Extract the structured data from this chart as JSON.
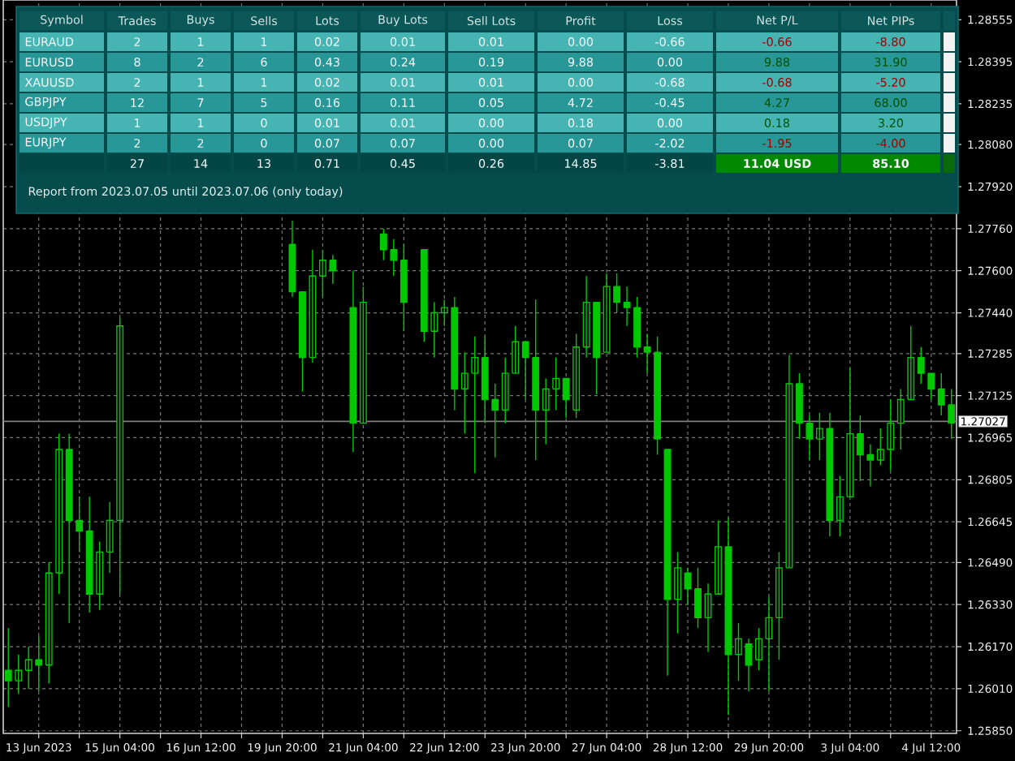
{
  "chart_data": [
    {
      "type": "candlestick",
      "color": "#00c800",
      "grid": true,
      "categories": [
        null,
        null,
        null,
        "13 Jun 2023",
        null,
        null,
        null,
        null,
        null,
        null,
        null,
        "15 Jun 04:00",
        null,
        null,
        null,
        null,
        null,
        null,
        null,
        "16 Jun 12:00",
        null,
        null,
        null,
        null,
        null,
        null,
        null,
        "19 Jun 20:00",
        null,
        null,
        null,
        null,
        null,
        null,
        null,
        "21 Jun 04:00",
        null,
        null,
        null,
        null,
        null,
        null,
        null,
        "22 Jun 12:00",
        null,
        null,
        null,
        null,
        null,
        null,
        null,
        "23 Jun 20:00",
        null,
        null,
        null,
        null,
        null,
        null,
        null,
        "27 Jun 04:00",
        null,
        null,
        null,
        null,
        null,
        null,
        null,
        "28 Jun 12:00",
        null,
        null,
        null,
        null,
        null,
        null,
        null,
        "29 Jun 20:00",
        null,
        null,
        null,
        null,
        null,
        null,
        null,
        "3 Jul 04:00",
        null,
        null,
        null,
        null,
        null,
        null,
        null,
        "4 Jul 12:00",
        null,
        null
      ],
      "ohlc": [
        [
          1.2608,
          1.2624,
          1.2594,
          1.2604
        ],
        [
          1.2604,
          1.2614,
          1.2599,
          1.2608
        ],
        [
          1.2608,
          1.2617,
          1.2601,
          1.2612
        ],
        [
          1.2612,
          1.2621,
          1.26,
          1.261
        ],
        [
          1.261,
          1.2649,
          1.2603,
          1.2645
        ],
        [
          1.2645,
          1.2698,
          1.2637,
          1.2692
        ],
        [
          1.2692,
          1.2698,
          1.2626,
          1.2665
        ],
        [
          1.2665,
          1.2674,
          1.2653,
          1.2661
        ],
        [
          1.2661,
          1.2674,
          1.263,
          1.2637
        ],
        [
          1.2637,
          1.2657,
          1.2631,
          1.2653
        ],
        [
          1.2653,
          1.2672,
          1.2645,
          1.2665
        ],
        [
          1.2665,
          1.2742,
          1.2637,
          1.2739
        ],
        null,
        null,
        null,
        null,
        null,
        null,
        null,
        null,
        null,
        null,
        null,
        null,
        null,
        null,
        null,
        null,
        [
          1.277,
          1.2779,
          1.275,
          1.2752
        ],
        [
          1.2752,
          1.2752,
          1.2714,
          1.2727
        ],
        [
          1.2727,
          1.2768,
          1.2725,
          1.2758
        ],
        [
          1.2758,
          1.2768,
          1.275,
          1.2764
        ],
        [
          1.2764,
          1.2766,
          1.2755,
          1.276
        ],
        null,
        [
          1.2746,
          1.276,
          1.2691,
          1.2702
        ],
        [
          1.2702,
          1.2754,
          1.2702,
          1.2748
        ],
        null,
        [
          1.2774,
          1.2776,
          1.2764,
          1.2768
        ],
        [
          1.2768,
          1.2772,
          1.2758,
          1.2764
        ],
        [
          1.2764,
          1.277,
          1.2737,
          1.2748
        ],
        null,
        [
          1.2768,
          1.2768,
          1.2733,
          1.2737
        ],
        [
          1.2737,
          1.2748,
          1.2727,
          1.2744
        ],
        [
          1.2744,
          1.2749,
          1.2739,
          1.2746
        ],
        [
          1.2746,
          1.275,
          1.2707,
          1.2715
        ],
        [
          1.2715,
          1.2729,
          1.2698,
          1.2721
        ],
        [
          1.2721,
          1.2735,
          1.2683,
          1.2727
        ],
        [
          1.2727,
          1.2735,
          1.2702,
          1.2711
        ],
        [
          1.2711,
          1.2717,
          1.2689,
          1.2707
        ],
        [
          1.2707,
          1.2727,
          1.2702,
          1.2721
        ],
        [
          1.2721,
          1.2739,
          1.2721,
          1.2733
        ],
        [
          1.2733,
          1.2733,
          1.2711,
          1.2727
        ],
        [
          1.2727,
          1.2749,
          1.2688,
          1.2707
        ],
        [
          1.2707,
          1.2719,
          1.2694,
          1.2715
        ],
        [
          1.2715,
          1.2727,
          1.2707,
          1.2719
        ],
        [
          1.2719,
          1.2719,
          1.2704,
          1.2711
        ],
        [
          1.2707,
          1.2736,
          1.2704,
          1.2731
        ],
        [
          1.2731,
          1.2758,
          1.2727,
          1.2748
        ],
        [
          1.2748,
          1.2748,
          1.2713,
          1.2727
        ],
        [
          1.2729,
          1.2759,
          1.2729,
          1.2754
        ],
        [
          1.2754,
          1.2759,
          1.2744,
          1.2748
        ],
        [
          1.2748,
          1.2754,
          1.2739,
          1.2746
        ],
        [
          1.2746,
          1.275,
          1.2727,
          1.2731
        ],
        [
          1.2731,
          1.2736,
          1.2721,
          1.2729
        ],
        [
          1.2729,
          1.2735,
          1.269,
          1.2696
        ],
        [
          1.2692,
          1.2692,
          1.2606,
          1.2635
        ],
        [
          1.2635,
          1.2653,
          1.2622,
          1.2647
        ],
        [
          1.2645,
          1.2647,
          1.2633,
          1.2639
        ],
        [
          1.2639,
          1.2647,
          1.2624,
          1.2628
        ],
        [
          1.2628,
          1.2641,
          1.2615,
          1.2637
        ],
        [
          1.2637,
          1.2665,
          1.2637,
          1.2655
        ],
        [
          1.2655,
          1.2666,
          1.2591,
          1.2614
        ],
        [
          1.2614,
          1.2626,
          1.2604,
          1.262
        ],
        [
          1.2618,
          1.262,
          1.26,
          1.261
        ],
        [
          1.2612,
          1.2624,
          1.2608,
          1.262
        ],
        [
          1.262,
          1.2636,
          1.26,
          1.2628
        ],
        [
          1.2628,
          1.2653,
          1.2612,
          1.2647
        ],
        [
          1.2647,
          1.2728,
          1.2647,
          1.2717
        ],
        [
          1.2717,
          1.2721,
          1.2696,
          1.2702
        ],
        [
          1.2702,
          1.2705,
          1.2688,
          1.2696
        ],
        [
          1.2696,
          1.2706,
          1.2688,
          1.27
        ],
        [
          1.27,
          1.2706,
          1.2659,
          1.2665
        ],
        [
          1.2665,
          1.2682,
          1.2659,
          1.2674
        ],
        [
          1.2674,
          1.2723,
          1.2674,
          1.2698
        ],
        [
          1.2698,
          1.2705,
          1.268,
          1.269
        ],
        [
          1.269,
          1.2694,
          1.2678,
          1.2688
        ],
        [
          1.2688,
          1.27,
          1.2686,
          1.2692
        ],
        [
          1.2692,
          1.2711,
          1.2684,
          1.2702
        ],
        [
          1.2702,
          1.2715,
          1.2692,
          1.2711
        ],
        [
          1.2711,
          1.2739,
          1.2711,
          1.2727
        ],
        [
          1.2727,
          1.2731,
          1.2717,
          1.2721
        ],
        [
          1.2721,
          1.2721,
          1.2711,
          1.2715
        ],
        [
          1.2715,
          1.2721,
          1.2705,
          1.2709
        ],
        [
          1.2709,
          1.2715,
          1.2696,
          1.2702
        ]
      ],
      "ylim": [
        1.2584,
        1.2863
      ],
      "yticks": [
        {
          "value": 1.2585,
          "label": "1.25850"
        },
        {
          "value": 1.2601,
          "label": "1.26010"
        },
        {
          "value": 1.2617,
          "label": "1.26170"
        },
        {
          "value": 1.2633,
          "label": "1.26330"
        },
        {
          "value": 1.2649,
          "label": "1.26490"
        },
        1.26645,
        1.26805,
        1.26965,
        1.27125,
        1.27285,
        {
          "value": 1.2744,
          "label": "1.27440"
        },
        {
          "value": 1.276,
          "label": "1.27600"
        },
        {
          "value": 1.2776,
          "label": "1.27760"
        },
        {
          "value": 1.2792,
          "label": "1.27920"
        },
        {
          "value": 1.2808,
          "label": "1.28080"
        },
        1.28235,
        1.28395,
        1.28555
      ],
      "ref_lines": [
        {
          "axis": "y",
          "value": 1.27027,
          "label": "1.27027",
          "color": "#808080"
        }
      ]
    },
    {
      "type": "other",
      "ylabel": "Symbol",
      "categories": [
        "Trades",
        "Buys",
        "Sells",
        "Lots",
        "Buy Lots",
        "Sell Lots",
        "Profit",
        "Loss",
        "Net P/L",
        "Net PIPs"
      ],
      "y_categories": [
        "EURAUD",
        "EURUSD",
        "XAUUSD",
        "GBPJPY",
        "USDJPY",
        "EURJPY",
        null
      ],
      "cell_labels": [
        [
          "2",
          "1",
          "1",
          "0.02",
          "0.01",
          "0.01",
          "0.00",
          "-0.66",
          "-0.66",
          "-8.80"
        ],
        [
          "8",
          "2",
          "6",
          "0.43",
          "0.24",
          "0.19",
          "9.88",
          "0.00",
          "9.88",
          "31.90"
        ],
        [
          "2",
          "1",
          "1",
          "0.02",
          "0.01",
          "0.01",
          "0.00",
          "-0.68",
          "-0.68",
          "-5.20"
        ],
        [
          "12",
          "7",
          "5",
          "0.16",
          "0.11",
          "0.05",
          "4.72",
          "-0.45",
          "4.27",
          "68.00"
        ],
        [
          "1",
          "1",
          "0",
          "0.01",
          "0.01",
          "0.00",
          "0.18",
          "0.00",
          "0.18",
          "3.20"
        ],
        [
          "2",
          "2",
          "0",
          "0.07",
          "0.07",
          "0.00",
          "0.07",
          "-2.02",
          "-1.95",
          "-4.00"
        ],
        [
          "27",
          "14",
          "13",
          "0.71",
          "0.45",
          "0.26",
          "14.85",
          "-3.81",
          "11.04 USD",
          "85.10"
        ]
      ],
      "annotations": [
        "Report from 2023.07.05 until 2023.07.06 (only today)"
      ]
    }
  ]
}
